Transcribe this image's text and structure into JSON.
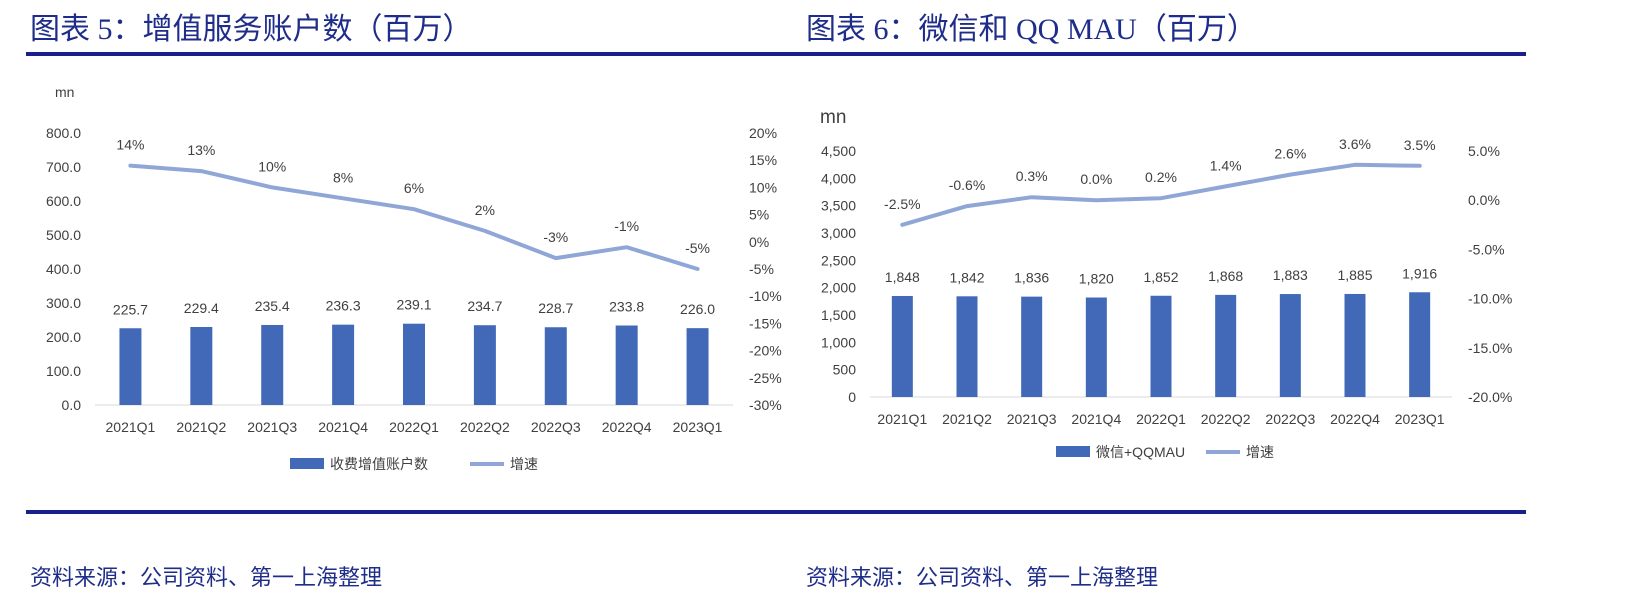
{
  "left": {
    "title": "图表 5：增值服务账户数（百万）",
    "source": "资料来源：公司资料、第一上海整理",
    "unit_label": "mn",
    "chart_data": {
      "type": "bar",
      "categories": [
        "2021Q1",
        "2021Q2",
        "2021Q3",
        "2021Q4",
        "2022Q1",
        "2022Q2",
        "2022Q3",
        "2022Q4",
        "2023Q1"
      ],
      "series": [
        {
          "name": "收费增值账户数",
          "type": "bar",
          "axis": "left",
          "values": [
            225.7,
            229.4,
            235.4,
            236.3,
            239.1,
            234.7,
            228.7,
            233.8,
            226.0
          ],
          "labels": [
            "225.7",
            "229.4",
            "235.4",
            "236.3",
            "239.1",
            "234.7",
            "228.7",
            "233.8",
            "226.0"
          ],
          "color": "#4169b8"
        },
        {
          "name": "增速",
          "type": "line",
          "axis": "right",
          "values": [
            14,
            13,
            10,
            8,
            6,
            2,
            -3,
            -1,
            -5
          ],
          "labels": [
            "14%",
            "13%",
            "10%",
            "8%",
            "6%",
            "2%",
            "-3%",
            "-1%",
            "-5%"
          ],
          "color": "#8fa6d6"
        }
      ],
      "left_axis": {
        "min": 0,
        "max": 800,
        "ticks": [
          "0.0",
          "100.0",
          "200.0",
          "300.0",
          "400.0",
          "500.0",
          "600.0",
          "700.0",
          "800.0"
        ]
      },
      "right_axis": {
        "min": -30,
        "max": 20,
        "ticks": [
          "-30%",
          "-25%",
          "-20%",
          "-15%",
          "-10%",
          "-5%",
          "0%",
          "5%",
          "10%",
          "15%",
          "20%"
        ]
      },
      "legend_position": "bottom",
      "grid": false
    }
  },
  "right": {
    "title": "图表 6：微信和 QQ MAU（百万）",
    "source": "资料来源：公司资料、第一上海整理",
    "unit_label": "mn",
    "chart_data": {
      "type": "bar",
      "categories": [
        "2021Q1",
        "2021Q2",
        "2021Q3",
        "2021Q4",
        "2022Q1",
        "2022Q2",
        "2022Q3",
        "2022Q4",
        "2023Q1"
      ],
      "series": [
        {
          "name": "微信+QQMAU",
          "type": "bar",
          "axis": "left",
          "values": [
            1848,
            1842,
            1836,
            1820,
            1852,
            1868,
            1883,
            1885,
            1916
          ],
          "labels": [
            "1,848",
            "1,842",
            "1,836",
            "1,820",
            "1,852",
            "1,868",
            "1,883",
            "1,885",
            "1,916"
          ],
          "color": "#4169b8"
        },
        {
          "name": "增速",
          "type": "line",
          "axis": "right",
          "values": [
            -2.5,
            -0.6,
            0.3,
            0.0,
            0.2,
            1.4,
            2.6,
            3.6,
            3.5
          ],
          "labels": [
            "-2.5%",
            "-0.6%",
            "0.3%",
            "0.0%",
            "0.2%",
            "1.4%",
            "2.6%",
            "3.6%",
            "3.5%"
          ],
          "color": "#8fa6d6"
        }
      ],
      "left_axis": {
        "min": 0,
        "max": 4500,
        "ticks": [
          "0",
          "500",
          "1,000",
          "1,500",
          "2,000",
          "2,500",
          "3,000",
          "3,500",
          "4,000",
          "4,500"
        ]
      },
      "right_axis": {
        "min": -20,
        "max": 5,
        "ticks": [
          "-20.0%",
          "-15.0%",
          "-10.0%",
          "-5.0%",
          "0.0%",
          "5.0%"
        ]
      },
      "legend_position": "bottom",
      "grid": false
    }
  }
}
